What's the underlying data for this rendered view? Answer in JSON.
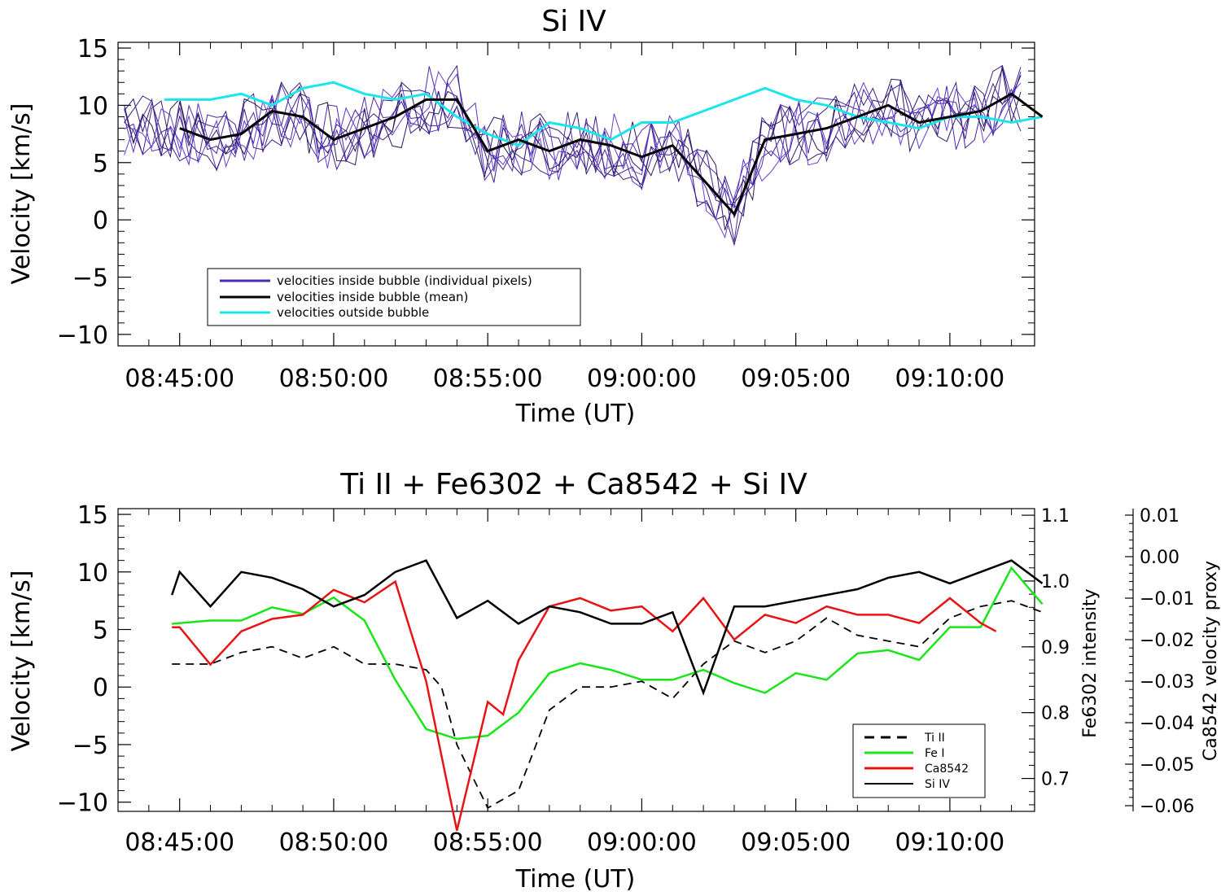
{
  "chart_data": [
    {
      "type": "line",
      "title": "Si IV",
      "xlabel": "Time (UT)",
      "ylabel": "Velocity [km/s]",
      "ylim": [
        -11,
        15.5
      ],
      "yticks": [
        "15",
        "10",
        "5",
        "0",
        "−10"
      ],
      "ytick_values": [
        15,
        10,
        5,
        0,
        -10
      ],
      "ytick_minus5": "−5",
      "xticks": [
        "08:45:00",
        "08:50:00",
        "08:55:00",
        "09:00:00",
        "09:05:00",
        "09:10:00"
      ],
      "xlim_minutes_from_0845": [
        -2,
        27.75
      ],
      "legend": {
        "position": "lower-left",
        "entries": [
          {
            "label": "velocities inside bubble (individual pixels)",
            "color": "#4a2ab0"
          },
          {
            "label": "velocities inside bubble (mean)",
            "color": "#000000"
          },
          {
            "label": "velocities outside bubble",
            "color": "#19e6ec"
          }
        ]
      },
      "series": [
        {
          "name": "velocities inside bubble (mean)",
          "color": "#000000",
          "x": [
            "08:45:00",
            "08:46:00",
            "08:47:00",
            "08:48:00",
            "08:49:00",
            "08:50:00",
            "08:51:00",
            "08:52:00",
            "08:53:00",
            "08:54:00",
            "08:55:00",
            "08:56:00",
            "08:57:00",
            "08:58:00",
            "08:59:00",
            "09:00:00",
            "09:01:00",
            "09:02:00",
            "09:03:00",
            "09:04:00",
            "09:05:00",
            "09:06:00",
            "09:07:00",
            "09:08:00",
            "09:09:00",
            "09:10:00",
            "09:11:00",
            "09:12:00",
            "09:13:00"
          ],
          "values": [
            8,
            7,
            7.5,
            9.5,
            9,
            7,
            8,
            9,
            10.5,
            10.5,
            6,
            7,
            6,
            7,
            6.5,
            5.5,
            6.5,
            3.5,
            0.5,
            7,
            7.5,
            8,
            9,
            10,
            8.5,
            9,
            9.5,
            11,
            9
          ]
        },
        {
          "name": "velocities outside bubble",
          "color": "#19e6ec",
          "x": [
            "08:44:30",
            "08:45:00",
            "08:46:00",
            "08:47:00",
            "08:48:00",
            "08:49:00",
            "08:50:00",
            "08:51:00",
            "08:52:00",
            "08:53:00",
            "08:54:00",
            "08:55:00",
            "08:56:00",
            "08:57:00",
            "08:58:00",
            "08:59:00",
            "09:00:00",
            "09:01:00",
            "09:02:00",
            "09:03:00",
            "09:04:00",
            "09:05:00",
            "09:06:00",
            "09:07:00",
            "09:08:00",
            "09:09:00",
            "09:10:00",
            "09:11:00",
            "09:12:00",
            "09:13:00"
          ],
          "values": [
            10.5,
            10.5,
            10.5,
            11,
            10,
            11.5,
            12,
            11,
            10.5,
            11,
            9,
            7.5,
            6.5,
            8.5,
            8,
            7,
            8.5,
            8.5,
            9.5,
            10.5,
            11.5,
            10.5,
            10,
            9,
            8.5,
            8,
            9,
            9,
            8.5,
            9
          ]
        }
      ],
      "pixel_series_count": 8
    },
    {
      "type": "line",
      "title": "Ti II + Fe6302 + Ca8542 + Si IV",
      "xlabel": "Time (UT)",
      "ylabel": "Velocity [km/s]",
      "ylim": [
        -10.8,
        15.5
      ],
      "yticks": [
        "15",
        "10",
        "5",
        "0",
        "−5",
        "−10"
      ],
      "ytick_values": [
        15,
        10,
        5,
        0,
        -5,
        -10
      ],
      "xticks": [
        "08:45:00",
        "08:50:00",
        "08:55:00",
        "09:00:00",
        "09:05:00",
        "09:10:00"
      ],
      "right_axis_1": {
        "label": "Fe6302 intensity",
        "ticks": [
          "1.1",
          "1.0",
          "0.9",
          "0.8",
          "0.7"
        ],
        "tick_values": [
          1.1,
          1.0,
          0.9,
          0.8,
          0.7
        ],
        "ylim": [
          0.65,
          1.11
        ]
      },
      "right_axis_2": {
        "label": "Ca8542 velocity proxy",
        "ticks": [
          "0.01",
          "0.00",
          "−0.01",
          "−0.02",
          "−0.03",
          "−0.04",
          "−0.05",
          "−0.06"
        ],
        "tick_values": [
          0.01,
          0.0,
          -0.01,
          -0.02,
          -0.03,
          -0.04,
          -0.05,
          -0.06
        ]
      },
      "legend": {
        "position": "lower-right",
        "entries": [
          {
            "label": "Ti II",
            "color": "#000000",
            "dash": true
          },
          {
            "label": "Fe I",
            "color": "#18e618"
          },
          {
            "label": "Ca8542",
            "color": "#e61414"
          },
          {
            "label": "Si IV",
            "color": "#000000"
          }
        ]
      },
      "series": [
        {
          "name": "Ti II",
          "color": "#000000",
          "dash": true,
          "x": [
            "08:44:45",
            "08:46:00",
            "08:47:00",
            "08:48:00",
            "08:49:00",
            "08:50:00",
            "08:51:00",
            "08:52:00",
            "08:53:00",
            "08:53:30",
            "08:54:00",
            "08:55:00",
            "08:56:00",
            "08:57:00",
            "08:58:00",
            "08:59:00",
            "09:00:00",
            "09:01:00",
            "09:02:00",
            "09:03:00",
            "09:04:00",
            "09:05:00",
            "09:06:00",
            "09:07:00",
            "09:08:00",
            "09:09:00",
            "09:10:00",
            "09:11:00",
            "09:12:00",
            "09:13:00"
          ],
          "values": [
            2,
            2,
            3,
            3.5,
            2.5,
            3.5,
            2,
            2,
            1.5,
            0,
            -5,
            -10.5,
            -9,
            -2,
            0,
            0,
            0.5,
            -1,
            2,
            4,
            3,
            4,
            6,
            4.5,
            4,
            3.5,
            6,
            7,
            7.5,
            6.5
          ]
        },
        {
          "name": "Fe I",
          "color": "#18e618",
          "x": [
            "08:44:45",
            "08:46:00",
            "08:47:00",
            "08:48:00",
            "08:49:00",
            "08:50:00",
            "08:51:00",
            "08:52:00",
            "08:53:00",
            "08:54:00",
            "08:55:00",
            "08:56:00",
            "08:57:00",
            "08:58:00",
            "08:59:00",
            "09:00:00",
            "09:01:00",
            "09:02:00",
            "09:03:00",
            "09:04:00",
            "09:05:00",
            "09:06:00",
            "09:07:00",
            "09:08:00",
            "09:09:00",
            "09:10:00",
            "09:11:00",
            "09:12:00",
            "09:13:00"
          ],
          "values": [
            0.935,
            0.94,
            0.94,
            0.96,
            0.95,
            0.975,
            0.94,
            0.85,
            0.775,
            0.76,
            0.765,
            0.8,
            0.86,
            0.875,
            0.865,
            0.85,
            0.85,
            0.865,
            0.845,
            0.83,
            0.86,
            0.85,
            0.89,
            0.895,
            0.88,
            0.93,
            0.93,
            1.02,
            0.965
          ]
        },
        {
          "name": "Ca8542",
          "color": "#e61414",
          "x": [
            "08:44:45",
            "08:45:00",
            "08:46:00",
            "08:47:00",
            "08:48:00",
            "08:49:00",
            "08:50:00",
            "08:51:00",
            "08:52:00",
            "08:53:00",
            "08:54:00",
            "08:55:00",
            "08:55:30",
            "08:56:00",
            "08:57:00",
            "08:58:00",
            "08:59:00",
            "09:00:00",
            "09:01:00",
            "09:02:00",
            "09:03:00",
            "09:04:00",
            "09:05:00",
            "09:06:00",
            "09:07:00",
            "09:08:00",
            "09:09:00",
            "09:10:00",
            "09:11:00",
            "09:11:30"
          ],
          "values": [
            -0.017,
            -0.017,
            -0.026,
            -0.018,
            -0.015,
            -0.014,
            -0.008,
            -0.011,
            -0.006,
            -0.03,
            -0.066,
            -0.035,
            -0.038,
            -0.025,
            -0.012,
            -0.01,
            -0.013,
            -0.012,
            -0.018,
            -0.01,
            -0.02,
            -0.014,
            -0.016,
            -0.012,
            -0.014,
            -0.014,
            -0.016,
            -0.01,
            -0.016,
            -0.018
          ]
        },
        {
          "name": "Si IV",
          "color": "#000000",
          "x": [
            "08:44:45",
            "08:45:00",
            "08:46:00",
            "08:47:00",
            "08:48:00",
            "08:49:00",
            "08:50:00",
            "08:51:00",
            "08:52:00",
            "08:53:00",
            "08:54:00",
            "08:55:00",
            "08:56:00",
            "08:57:00",
            "08:58:00",
            "08:59:00",
            "09:00:00",
            "09:01:00",
            "09:02:00",
            "09:03:00",
            "09:04:00",
            "09:05:00",
            "09:06:00",
            "09:07:00",
            "09:08:00",
            "09:09:00",
            "09:10:00",
            "09:11:00",
            "09:12:00",
            "09:13:00"
          ],
          "values": [
            8,
            10,
            7,
            10,
            9.5,
            8.5,
            7,
            8,
            10,
            11,
            6,
            7.5,
            5.5,
            7,
            6.5,
            5.5,
            5.5,
            6.5,
            -0.5,
            7,
            7,
            7.5,
            8,
            8.5,
            9.5,
            10,
            9,
            10,
            11,
            9
          ]
        }
      ]
    }
  ]
}
